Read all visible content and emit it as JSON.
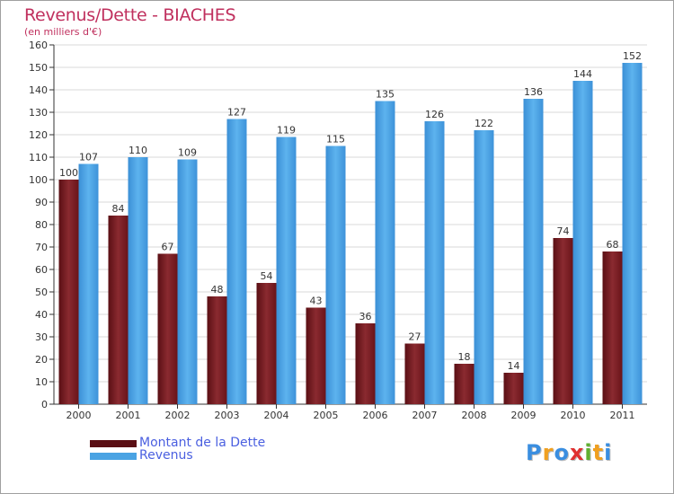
{
  "header": {
    "title": "Revenus/Dette - BIACHES",
    "subtitle": "(en milliers d'€)"
  },
  "chart_data": {
    "type": "bar",
    "categories": [
      "2000",
      "2001",
      "2002",
      "2003",
      "2004",
      "2005",
      "2006",
      "2007",
      "2008",
      "2009",
      "2010",
      "2011"
    ],
    "series": [
      {
        "name": "Montant de la Dette",
        "values": [
          100,
          84,
          67,
          48,
          54,
          43,
          36,
          27,
          18,
          14,
          74,
          68
        ],
        "color": "#7a1a1f"
      },
      {
        "name": "Revenus",
        "values": [
          107,
          110,
          109,
          127,
          119,
          115,
          135,
          126,
          122,
          136,
          144,
          152
        ],
        "color": "#4aa3e3"
      }
    ],
    "ylim": [
      0,
      160
    ],
    "yticks": [
      0,
      10,
      20,
      30,
      40,
      50,
      60,
      70,
      80,
      90,
      100,
      110,
      120,
      130,
      140,
      150,
      160
    ],
    "grid": true,
    "legend_position": "bottom-left"
  },
  "legend": {
    "items": [
      {
        "label": "Montant de la Dette",
        "color": "#5a0f14"
      },
      {
        "label": "Revenus",
        "color": "#4aa3e3"
      }
    ]
  },
  "logo": {
    "letters": [
      "P",
      "r",
      "o",
      "x",
      "i",
      "t",
      "i"
    ],
    "colors": [
      "#3a8ee0",
      "#f0a020",
      "#3a8ee0",
      "#e03030",
      "#60b030",
      "#f0a020",
      "#3a8ee0"
    ]
  }
}
